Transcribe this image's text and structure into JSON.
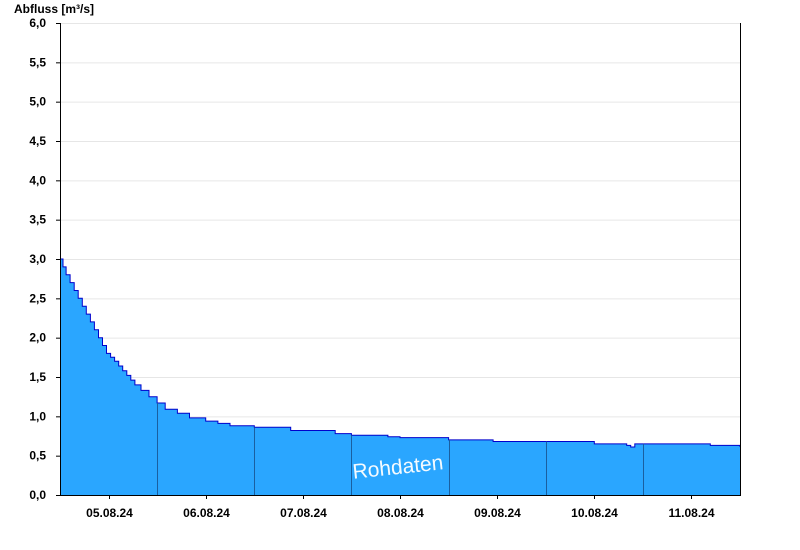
{
  "chart_data": {
    "type": "area",
    "ylabel": "Abfluss [m³/s]",
    "watermark": "Rohdaten",
    "ylim": [
      0,
      6.0
    ],
    "y_ticks": [
      {
        "value": 0.0,
        "label": "0,0"
      },
      {
        "value": 0.5,
        "label": "0,5"
      },
      {
        "value": 1.0,
        "label": "1,0"
      },
      {
        "value": 1.5,
        "label": "1,5"
      },
      {
        "value": 2.0,
        "label": "2,0"
      },
      {
        "value": 2.5,
        "label": "2,5"
      },
      {
        "value": 3.0,
        "label": "3,0"
      },
      {
        "value": 3.5,
        "label": "3,5"
      },
      {
        "value": 4.0,
        "label": "4,0"
      },
      {
        "value": 4.5,
        "label": "4,5"
      },
      {
        "value": 5.0,
        "label": "5,0"
      },
      {
        "value": 5.5,
        "label": "5,5"
      },
      {
        "value": 6.0,
        "label": "6,0"
      }
    ],
    "x_range": [
      "2024-08-04T12:00",
      "2024-08-11T12:00"
    ],
    "x_ticks": [
      {
        "at": "2024-08-05T00:00",
        "label": "05.08.24"
      },
      {
        "at": "2024-08-06T00:00",
        "label": "06.08.24"
      },
      {
        "at": "2024-08-07T00:00",
        "label": "07.08.24"
      },
      {
        "at": "2024-08-08T00:00",
        "label": "08.08.24"
      },
      {
        "at": "2024-08-09T00:00",
        "label": "09.08.24"
      },
      {
        "at": "2024-08-10T00:00",
        "label": "10.08.24"
      },
      {
        "at": "2024-08-11T00:00",
        "label": "11.08.24"
      }
    ],
    "day_dividers": [
      "2024-08-05T12:00",
      "2024-08-06T12:00",
      "2024-08-07T12:00",
      "2024-08-08T12:00",
      "2024-08-09T12:00",
      "2024-08-10T12:00"
    ],
    "grid": "horizontal",
    "colors": {
      "fill": "#2aa6ff",
      "line": "#0000cc",
      "divider": "#1a5fa0",
      "grid": "#e6e6e6"
    },
    "series": [
      {
        "x": [
          "2024-08-04T12:00",
          "2024-08-04T12:45",
          "2024-08-04T13:30",
          "2024-08-04T14:30",
          "2024-08-04T15:30",
          "2024-08-04T16:30",
          "2024-08-04T17:30",
          "2024-08-04T18:30",
          "2024-08-04T19:30",
          "2024-08-04T20:30",
          "2024-08-04T21:30",
          "2024-08-04T22:30",
          "2024-08-04T23:30",
          "2024-08-05T00:30",
          "2024-08-05T01:30",
          "2024-08-05T02:30",
          "2024-08-05T03:30",
          "2024-08-05T04:30",
          "2024-08-05T05:30",
          "2024-08-05T06:30",
          "2024-08-05T08:00",
          "2024-08-05T10:00",
          "2024-08-05T12:00",
          "2024-08-05T14:00",
          "2024-08-05T17:00",
          "2024-08-05T20:00",
          "2024-08-06T00:00",
          "2024-08-06T03:00",
          "2024-08-06T06:00",
          "2024-08-06T12:00",
          "2024-08-06T21:00",
          "2024-08-07T08:00",
          "2024-08-07T12:00",
          "2024-08-07T21:00",
          "2024-08-08T00:00",
          "2024-08-08T12:00",
          "2024-08-08T23:00",
          "2024-08-09T13:00",
          "2024-08-10T00:00",
          "2024-08-10T08:00",
          "2024-08-10T09:00",
          "2024-08-10T10:00",
          "2024-08-11T04:00",
          "2024-08-11T04:40",
          "2024-08-11T07:00",
          "2024-08-11T12:00"
        ],
        "values": [
          3.0,
          2.9,
          2.8,
          2.7,
          2.6,
          2.5,
          2.4,
          2.3,
          2.2,
          2.1,
          2.0,
          1.9,
          1.8,
          1.75,
          1.7,
          1.64,
          1.58,
          1.52,
          1.46,
          1.4,
          1.33,
          1.25,
          1.17,
          1.09,
          1.04,
          0.98,
          0.94,
          0.91,
          0.88,
          0.86,
          0.82,
          0.78,
          0.76,
          0.74,
          0.73,
          0.7,
          0.68,
          0.68,
          0.65,
          0.63,
          0.61,
          0.65,
          0.65,
          0.63,
          0.63,
          0.61
        ]
      }
    ]
  }
}
